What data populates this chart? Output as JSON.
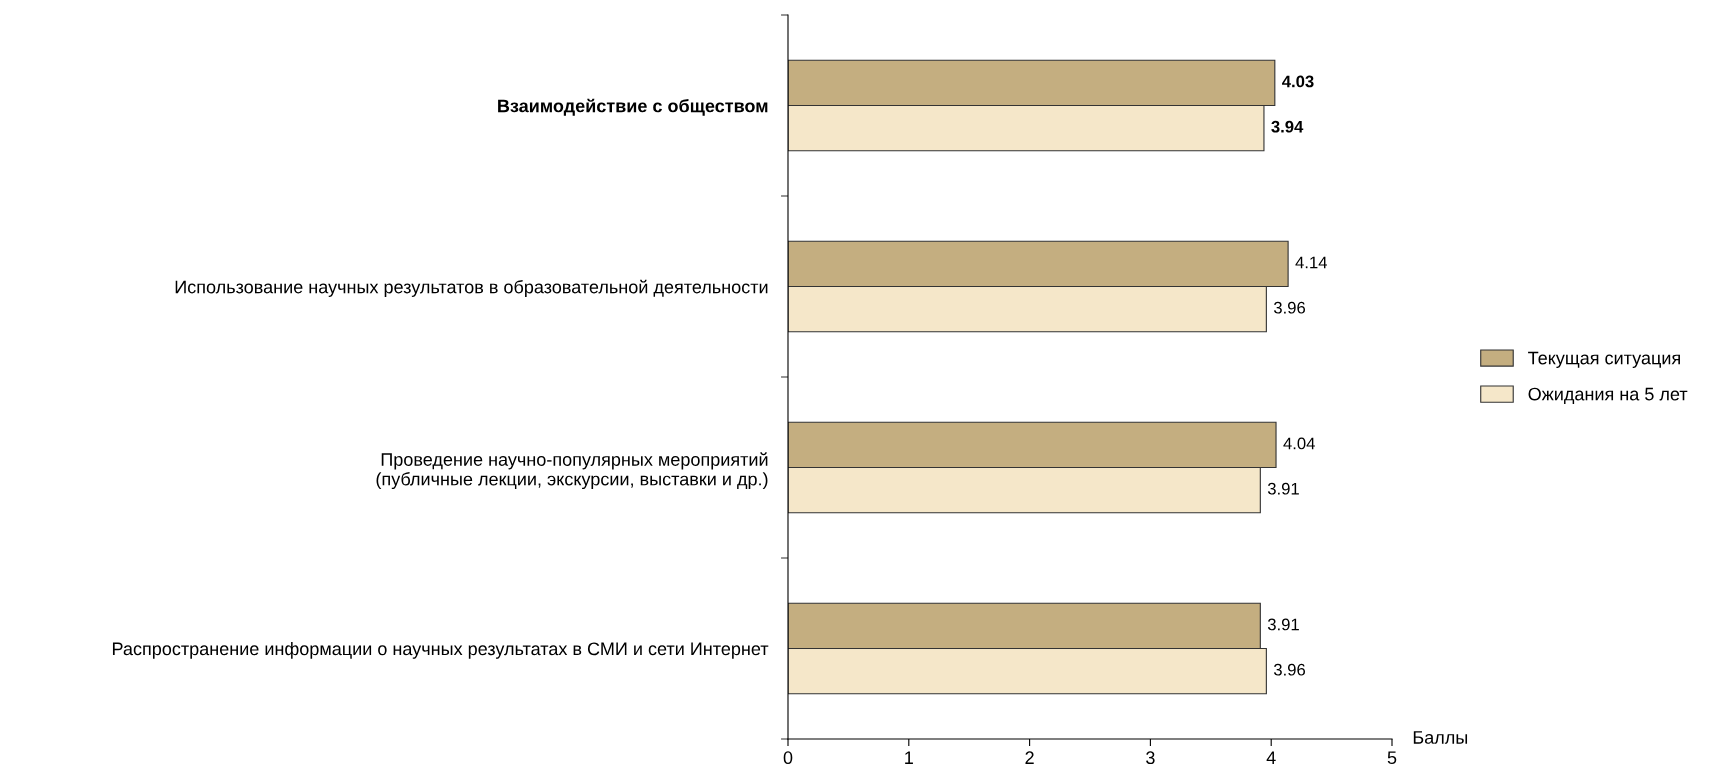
{
  "chart_data": {
    "type": "bar",
    "orientation": "horizontal",
    "xlabel": "Баллы",
    "categories": [
      "Взаимодействие с обществом",
      "Использование научных результатов в образовательной деятельности",
      "Проведение научно-популярных мероприятий\n(публичные лекции, экскурсии, выставки и др.)",
      "Распространение информации о научных результатах в СМИ и сети Интернет"
    ],
    "series": [
      {
        "name": "Текущая ситуация",
        "color": "#c4ae80",
        "values": [
          4.03,
          4.14,
          4.04,
          3.91
        ]
      },
      {
        "name": "Ожидания на 5 лет",
        "color": "#f5e7c9",
        "values": [
          3.94,
          3.96,
          3.91,
          3.96
        ]
      }
    ],
    "xlim": [
      0,
      5
    ],
    "xticks": [
      0,
      1,
      2,
      3,
      4,
      5
    ],
    "data_labels": true,
    "grid": false,
    "legend": "right"
  }
}
